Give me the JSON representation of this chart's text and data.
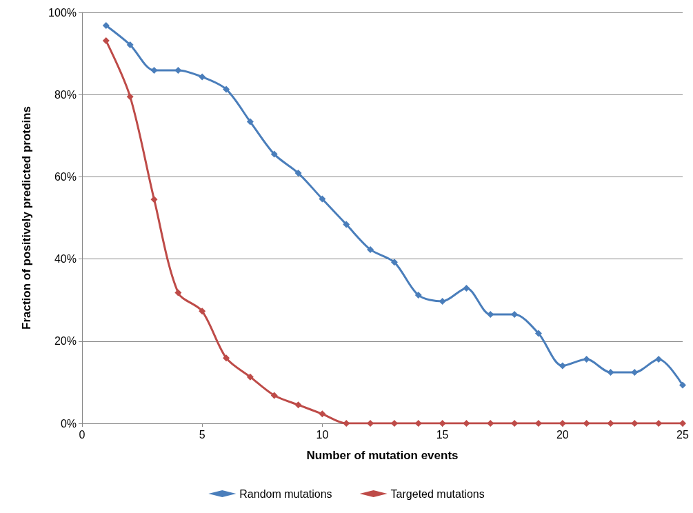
{
  "chart_data": {
    "type": "line",
    "xlabel": "Number of mutation events",
    "ylabel": "Fraction of positively predicted proteins",
    "x": [
      1,
      2,
      3,
      4,
      5,
      6,
      7,
      8,
      9,
      10,
      11,
      12,
      13,
      14,
      15,
      16,
      17,
      18,
      19,
      20,
      21,
      22,
      23,
      24,
      25
    ],
    "series": [
      {
        "name": "Random mutations",
        "color": "#4a7ebb",
        "values": [
          96.8,
          92.1,
          85.9,
          85.9,
          84.3,
          81.3,
          73.4,
          65.5,
          60.9,
          54.6,
          48.4,
          42.3,
          39.2,
          31.2,
          29.7,
          32.9,
          26.5,
          26.5,
          21.9,
          14.0,
          15.6,
          12.4,
          12.4,
          15.6,
          9.3
        ]
      },
      {
        "name": "Targeted mutations",
        "color": "#be4b48",
        "values": [
          93.1,
          79.5,
          54.5,
          31.8,
          27.3,
          15.9,
          11.3,
          6.8,
          4.5,
          2.3,
          0,
          0,
          0,
          0,
          0,
          0,
          0,
          0,
          0,
          0,
          0,
          0,
          0,
          0,
          0
        ]
      }
    ],
    "xlim": [
      0,
      25
    ],
    "xticks": [
      0,
      5,
      10,
      15,
      20,
      25
    ],
    "ylim": [
      0,
      100
    ],
    "yticks": [
      {
        "value": 0,
        "label": "0%"
      },
      {
        "value": 20,
        "label": "20%"
      },
      {
        "value": 40,
        "label": "40%"
      },
      {
        "value": 60,
        "label": "60%"
      },
      {
        "value": 80,
        "label": "80%"
      },
      {
        "value": 100,
        "label": "100%"
      }
    ],
    "grid": "y",
    "legend": "bottom",
    "marker": "diamond",
    "line_style": "solid"
  }
}
